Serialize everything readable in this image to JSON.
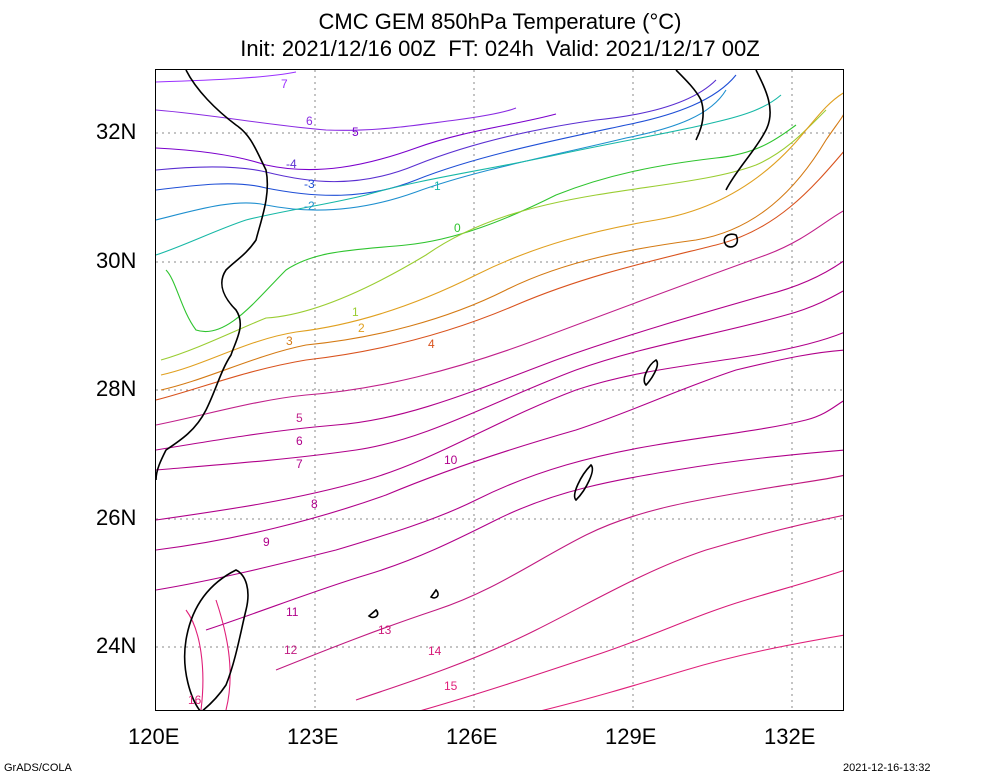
{
  "title": {
    "line1": "CMC GEM 850hPa Temperature (°C)",
    "line2": "Init: 2021/12/16 00Z  FT: 024h  Valid: 2021/12/17 00Z"
  },
  "axes": {
    "x_ticks": [
      "120E",
      "123E",
      "126E",
      "129E",
      "132E"
    ],
    "y_ticks": [
      "32N",
      "30N",
      "28N",
      "26N",
      "24N"
    ]
  },
  "footer": {
    "left": "GrADS/COLA",
    "right": "2021-12-16-13:32"
  },
  "colors": {
    "minus7": "#8a2be2",
    "minus6": "#9b30ff",
    "minus5": "#7b00cc",
    "minus4": "#5a2fd1",
    "minus3": "#1f4fd6",
    "minus2": "#1e8fcf",
    "minus1": "#17b8a6",
    "zero": "#2fc42f",
    "plus1": "#9acd32",
    "plus2": "#e0a020",
    "plus3": "#d47a14",
    "plus4": "#d9531e",
    "warm": "#b0008a",
    "hot": "#e0207a",
    "coast": "#000000",
    "grid": "#888888"
  },
  "contour_labels": [
    {
      "text": "7"
    },
    {
      "text": "6"
    },
    {
      "text": "5"
    },
    {
      "text": "-4"
    },
    {
      "text": "-3"
    },
    {
      "text": "-2"
    },
    {
      "text": "-1"
    },
    {
      "text": "0"
    },
    {
      "text": "1"
    },
    {
      "text": "2"
    },
    {
      "text": "3"
    },
    {
      "text": "4"
    },
    {
      "text": "5"
    },
    {
      "text": "6"
    },
    {
      "text": "7"
    },
    {
      "text": "8"
    },
    {
      "text": "9"
    },
    {
      "text": "10"
    },
    {
      "text": "11"
    },
    {
      "text": "12"
    },
    {
      "text": "13"
    },
    {
      "text": "14"
    },
    {
      "text": "15"
    },
    {
      "text": "16"
    }
  ]
}
